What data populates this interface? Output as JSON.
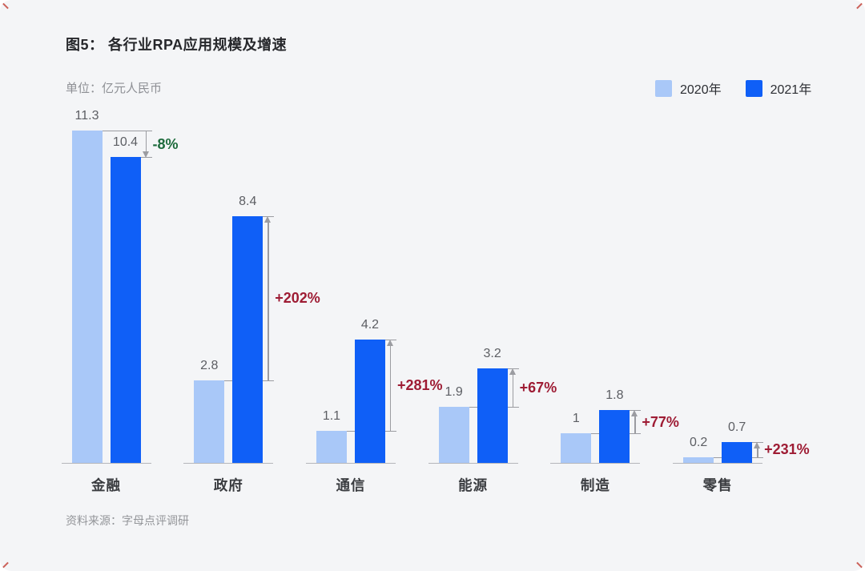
{
  "page": {
    "title": "图5： 各行业RPA应用规模及增速",
    "unit_label": "单位：亿元人民币",
    "source": "资料来源：字母点评调研"
  },
  "legend": {
    "items": [
      {
        "label": "2020年",
        "color": "#a9c8f8"
      },
      {
        "label": "2021年",
        "color": "#0f5ff7"
      }
    ]
  },
  "colors": {
    "background": "#f4f5f7",
    "bar_2020": "#a9c8f8",
    "bar_2021": "#0f5ff7",
    "axis_line": "#b4b5ba",
    "arrow": "#9b9ca1",
    "growth_positive": "#9e1c34",
    "growth_negative": "#1d6b3c",
    "corner_mark": "#c4453c"
  },
  "chart_data": {
    "type": "bar",
    "title": "各行业RPA应用规模及增速",
    "unit": "亿元人民币",
    "categories": [
      "金融",
      "政府",
      "通信",
      "能源",
      "制造",
      "零售"
    ],
    "category_slugs": [
      "finance",
      "government",
      "telecom",
      "energy",
      "manufacturing",
      "retail"
    ],
    "series": [
      {
        "name": "2020年",
        "values": [
          11.3,
          2.8,
          1.1,
          1.9,
          1,
          0.2
        ]
      },
      {
        "name": "2021年",
        "values": [
          10.4,
          8.4,
          4.2,
          3.2,
          1.8,
          0.7
        ]
      }
    ],
    "growth_labels": [
      "-8%",
      "+202%",
      "+281%",
      "+67%",
      "+77%",
      "+231%"
    ],
    "ylim": [
      0,
      11.3
    ],
    "grid": false,
    "legend_position": "top-right",
    "value_labels": true
  }
}
